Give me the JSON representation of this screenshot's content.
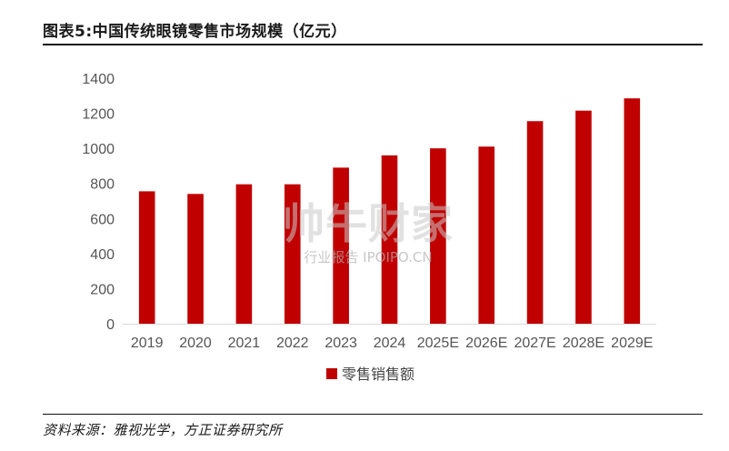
{
  "header": {
    "title": "图表5:中国传统眼镜零售市场规模（亿元）"
  },
  "footer": {
    "source": "资料来源：雅视光学，方正证券研究所"
  },
  "watermark": {
    "big": "帅牛财家",
    "small": "行业报告 IPOIPO.CN"
  },
  "colors": {
    "bar": "#c00000",
    "axis": "#d9d9d9"
  },
  "chart_data": {
    "type": "bar",
    "title": "",
    "xlabel": "",
    "ylabel": "",
    "ylim": [
      0,
      1400
    ],
    "yticks": [
      0,
      200,
      400,
      600,
      800,
      1000,
      1200,
      1400
    ],
    "grid": false,
    "legend_position": "bottom",
    "categories": [
      "2019",
      "2020",
      "2021",
      "2022",
      "2023",
      "2024",
      "2025E",
      "2026E",
      "2027E",
      "2028E",
      "2029E"
    ],
    "series": [
      {
        "name": "零售销售额",
        "values": [
          755,
          740,
          795,
          795,
          890,
          960,
          1000,
          1010,
          1155,
          1215,
          1285
        ]
      }
    ]
  }
}
